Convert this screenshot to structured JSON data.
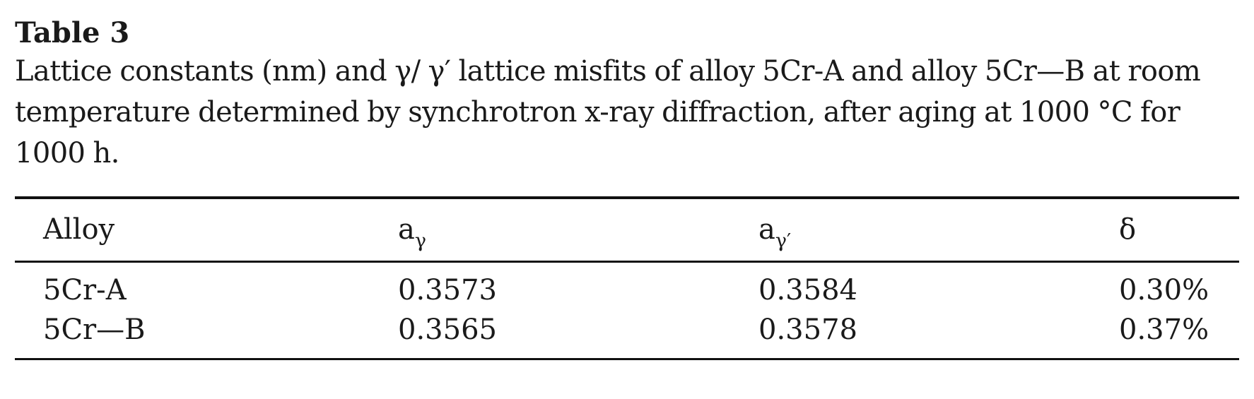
{
  "table": {
    "label": "Table 3",
    "caption": "Lattice constants (nm) and γ/ γ′ lattice misfits of alloy 5Cr-A and alloy 5Cr—B at room temperature determined by synchrotron x-ray diffraction, after aging at 1000 °C for 1000 h.",
    "headers": {
      "alloy": "Alloy",
      "a_gamma_base": "a",
      "a_gamma_sub": "γ",
      "a_gamma_prime_base": "a",
      "a_gamma_prime_sub": "γ′",
      "delta": "δ"
    },
    "rows": [
      {
        "alloy": "5Cr-A",
        "a_gamma": "0.3573",
        "a_gamma_prime": "0.3584",
        "delta": "0.30%"
      },
      {
        "alloy": "5Cr—B",
        "a_gamma": "0.3565",
        "a_gamma_prime": "0.3578",
        "delta": "0.37%"
      }
    ]
  }
}
